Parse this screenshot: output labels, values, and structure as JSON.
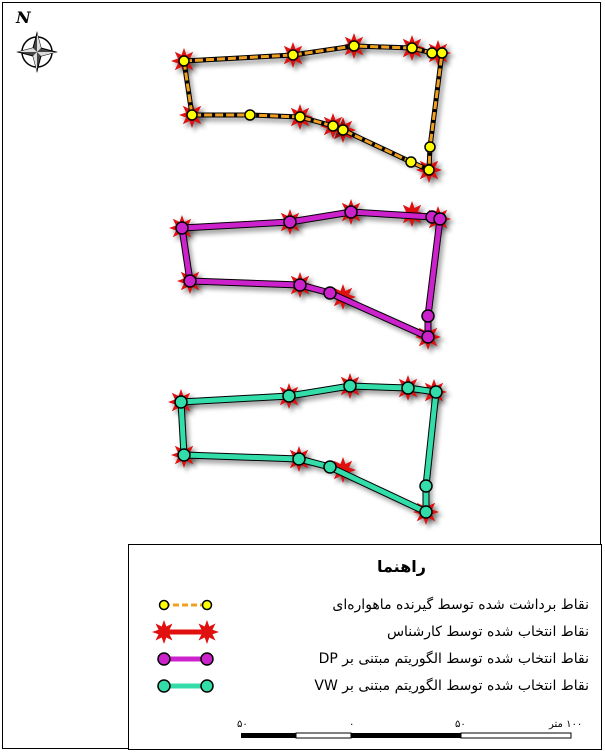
{
  "north_arrow": {
    "label": "N",
    "icon": "compass-rose-icon"
  },
  "colors": {
    "satellite_line": "#f0a020",
    "satellite_point_fill": "#ffff00",
    "expert_star": "#e01010",
    "dp_line": "#cc22cc",
    "vw_line": "#33ddaa"
  },
  "legend": {
    "title": "راهنما",
    "items": [
      {
        "label": "نقاط برداشت شده توسط گیرنده ماهواره‌ای",
        "symbol": "satellite-points-icon"
      },
      {
        "label": "نقاط انتخاب شده توسط کارشناس",
        "symbol": "expert-star-icon"
      },
      {
        "label": "نقاط انتخاب شده توسط الگوریتم مبتنی بر DP",
        "symbol": "dp-line-icon"
      },
      {
        "label": "نقاط انتخاب شده توسط الگوریتم مبتنی بر VW",
        "symbol": "vw-line-icon"
      }
    ]
  },
  "scale_bar": {
    "labels": [
      "۵۰",
      "۰",
      "۵۰",
      "۱۰۰ متر"
    ]
  }
}
